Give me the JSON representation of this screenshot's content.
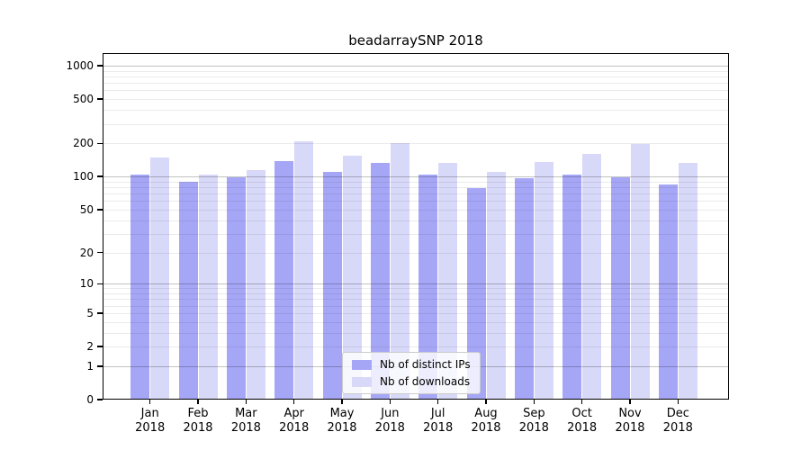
{
  "chart_data": {
    "type": "bar",
    "title": "beadarraySNP 2018",
    "categories": [
      "Jan",
      "Feb",
      "Mar",
      "Apr",
      "May",
      "Jun",
      "Jul",
      "Aug",
      "Sep",
      "Oct",
      "Nov",
      "Dec"
    ],
    "year": "2018",
    "series": [
      {
        "name": "Nb of distinct IPs",
        "color": "#a6a6f6",
        "values": [
          104,
          89,
          98,
          139,
          111,
          132,
          104,
          78,
          96,
          105,
          99,
          85
        ]
      },
      {
        "name": "Nb of downloads",
        "color": "#d8d8f8",
        "values": [
          150,
          105,
          115,
          210,
          154,
          200,
          133,
          111,
          136,
          162,
          199,
          134
        ]
      }
    ],
    "xlabel": "",
    "ylabel": "",
    "yscale": "log10(1+v)",
    "ylim": [
      0,
      1300
    ],
    "yticks": [
      0,
      1,
      2,
      5,
      10,
      20,
      50,
      100,
      200,
      500,
      1000
    ],
    "grid_major": [
      1,
      10,
      100,
      1000
    ],
    "grid_minor": [
      2,
      3,
      4,
      5,
      6,
      7,
      8,
      9,
      20,
      30,
      40,
      50,
      60,
      70,
      80,
      90,
      200,
      300,
      400,
      500,
      600,
      700,
      800,
      900
    ],
    "grid": "horizontal gridlines drawn over bars",
    "legend_position": "lower center, inside plot"
  }
}
